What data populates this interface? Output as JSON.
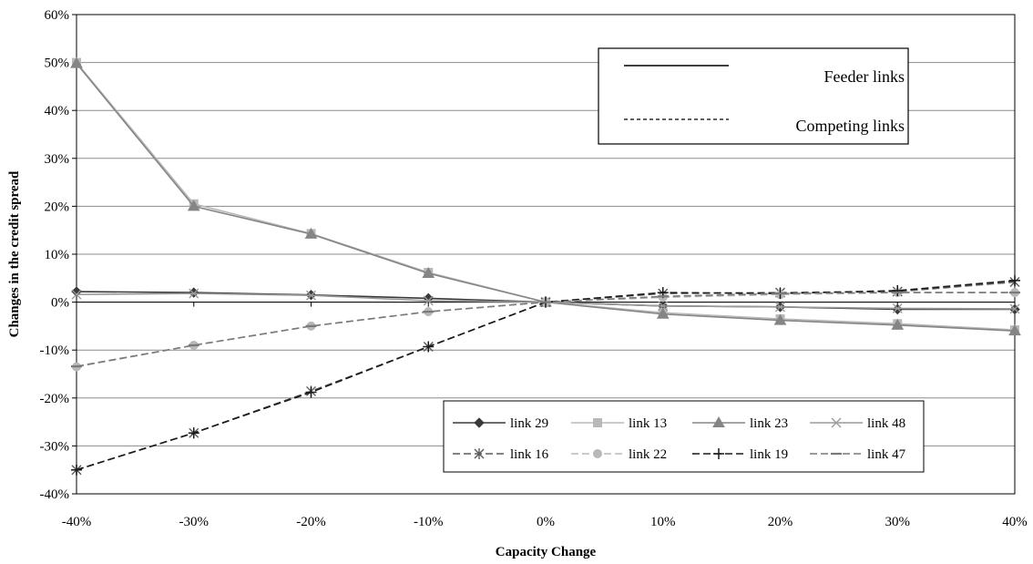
{
  "chart_data": {
    "type": "line",
    "xlabel": "Capacity Change",
    "ylabel": "Changes in the credit spread",
    "x": [
      "-40%",
      "-30%",
      "-20%",
      "-10%",
      "0%",
      "10%",
      "20%",
      "30%",
      "40%"
    ],
    "x_values": [
      -40,
      -30,
      -20,
      -10,
      0,
      10,
      20,
      30,
      40
    ],
    "ylim": [
      -40,
      60
    ],
    "y_ticks": [
      "60%",
      "50%",
      "40%",
      "30%",
      "20%",
      "10%",
      "0%",
      "-10%",
      "-20%",
      "-30%",
      "-40%"
    ],
    "grid": true,
    "series": [
      {
        "name": "link 29",
        "group": "feeder",
        "marker": "diamond",
        "color": "#3a3a3a",
        "values": [
          2.2,
          2.0,
          1.5,
          0.8,
          0,
          -0.8,
          -1.0,
          -1.5,
          -1.5
        ]
      },
      {
        "name": "link 13",
        "group": "feeder",
        "marker": "square",
        "color": "#b8b8b8",
        "values": [
          50.0,
          20.5,
          14.3,
          6.2,
          0,
          -2.2,
          -3.5,
          -4.5,
          -5.8
        ]
      },
      {
        "name": "link 23",
        "group": "feeder",
        "marker": "triangle",
        "color": "#858585",
        "values": [
          49.8,
          20.0,
          14.2,
          6.0,
          0,
          -2.5,
          -3.8,
          -4.8,
          -6.0
        ]
      },
      {
        "name": "link 48",
        "group": "feeder",
        "marker": "x",
        "color": "#9a9a9a",
        "values": [
          1.6,
          1.8,
          1.4,
          0.3,
          0,
          -0.8,
          -1.0,
          -1.3,
          -1.4
        ]
      },
      {
        "name": "link 16",
        "group": "competing",
        "marker": "star",
        "color": "#5a5a5a",
        "values": [
          -35.0,
          -27.3,
          -18.6,
          -9.3,
          0,
          1.8,
          2.0,
          2.2,
          4.2
        ]
      },
      {
        "name": "link 22",
        "group": "competing",
        "marker": "circle",
        "color": "#b8b8b8",
        "values": [
          -13.5,
          -9.0,
          -5.0,
          -2.0,
          0,
          1.0,
          1.6,
          2.0,
          2.0
        ]
      },
      {
        "name": "link 19",
        "group": "competing",
        "marker": "plus",
        "color": "#1a1a1a",
        "values": [
          -35.0,
          -27.3,
          -18.8,
          -9.3,
          0,
          2.0,
          1.8,
          2.4,
          4.5
        ]
      },
      {
        "name": "link 47",
        "group": "competing",
        "marker": "dash",
        "color": "#7a7a7a",
        "values": [
          -13.4,
          -9.0,
          -5.0,
          -2.0,
          0,
          1.2,
          1.8,
          2.0,
          2.0
        ]
      }
    ],
    "legend": {
      "placement": "bottom-right",
      "columns": 4
    },
    "style_key": {
      "placement": "top-right",
      "solid_label": "Feeder links",
      "dashed_label": "Competing links"
    }
  }
}
